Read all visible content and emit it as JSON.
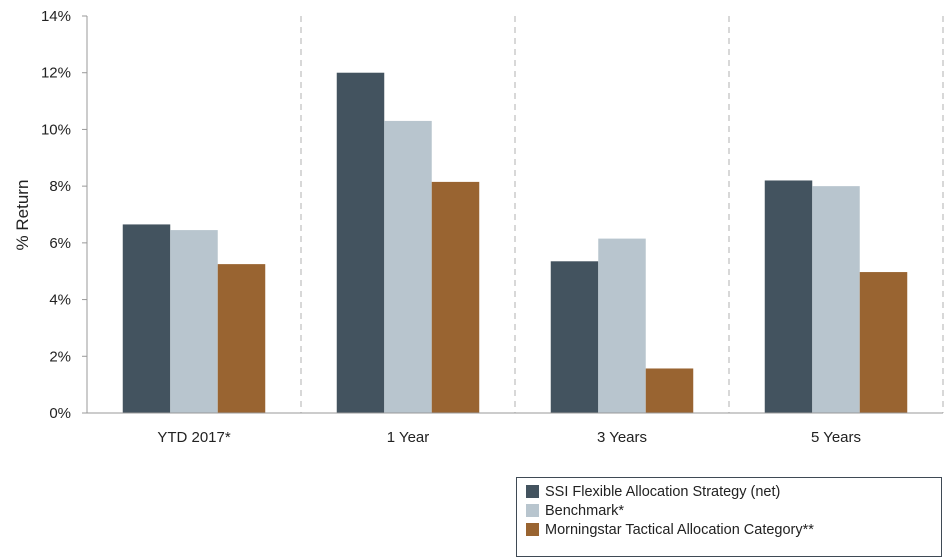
{
  "chart_data": {
    "type": "bar",
    "title": "",
    "xlabel": "",
    "ylabel": "% Return",
    "ylim": [
      0,
      14
    ],
    "y_ticks": [
      "0%",
      "2%",
      "4%",
      "6%",
      "8%",
      "10%",
      "12%",
      "14%"
    ],
    "y_tick_values": [
      0,
      2,
      4,
      6,
      8,
      10,
      12,
      14
    ],
    "categories": [
      "YTD 2017*",
      "1 Year",
      "3 Years",
      "5 Years"
    ],
    "series": [
      {
        "name": "SSI Flexible Allocation Strategy (net)",
        "color": "#43535f",
        "values": [
          6.65,
          12.0,
          5.35,
          8.2
        ]
      },
      {
        "name": "Benchmark*",
        "color": "#b8c5ce",
        "values": [
          6.45,
          10.3,
          6.15,
          8.0
        ]
      },
      {
        "name": "Morningstar Tactical Allocation Category**",
        "color": "#996431",
        "values": [
          5.25,
          8.15,
          1.57,
          4.97
        ]
      }
    ],
    "grid": "vertical dashed separators between categories",
    "legend_position": "bottom-right"
  }
}
